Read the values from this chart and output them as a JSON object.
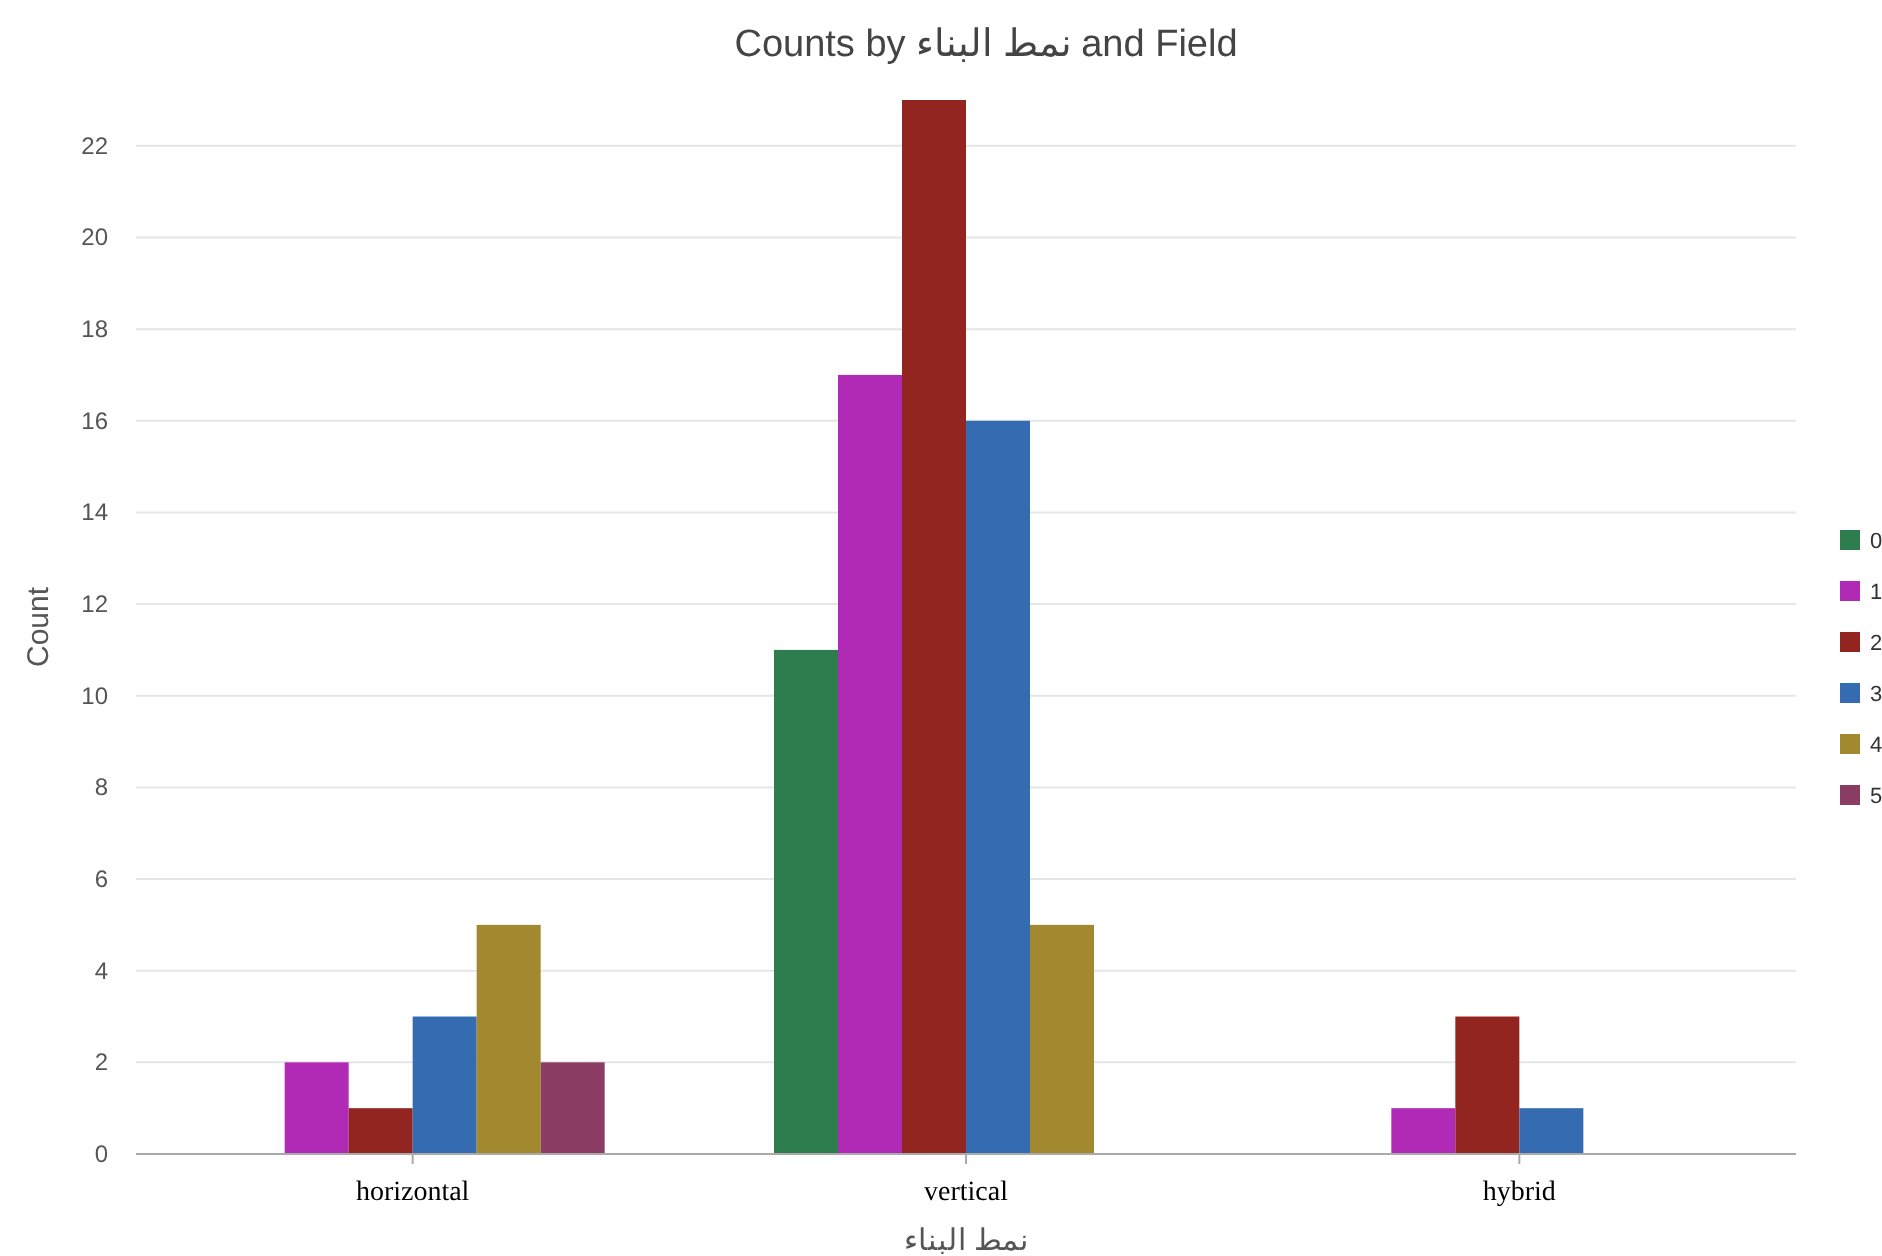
{
  "chart_data": {
    "type": "bar",
    "title": "Counts by نمط البناء and Field",
    "xlabel": "نمط البناء",
    "ylabel": "Count",
    "categories": [
      "horizontal",
      "vertical",
      "hybrid"
    ],
    "series": [
      {
        "name": "0",
        "color": "#2e7d4f",
        "values": [
          null,
          11,
          null
        ]
      },
      {
        "name": "1",
        "color": "#b02ab5",
        "values": [
          2,
          17,
          1
        ]
      },
      {
        "name": "2",
        "color": "#922520",
        "values": [
          1,
          23,
          3
        ]
      },
      {
        "name": "3",
        "color": "#356bb0",
        "values": [
          3,
          16,
          1
        ]
      },
      {
        "name": "4",
        "color": "#a2882e",
        "values": [
          5,
          5,
          null
        ]
      },
      {
        "name": "5",
        "color": "#8b3c63",
        "values": [
          2,
          null,
          null
        ]
      }
    ],
    "ylim": [
      0,
      23
    ],
    "yticks": [
      0,
      2,
      4,
      6,
      8,
      10,
      12,
      14,
      16,
      18,
      20,
      22
    ],
    "grid": "y",
    "legend": "right"
  }
}
